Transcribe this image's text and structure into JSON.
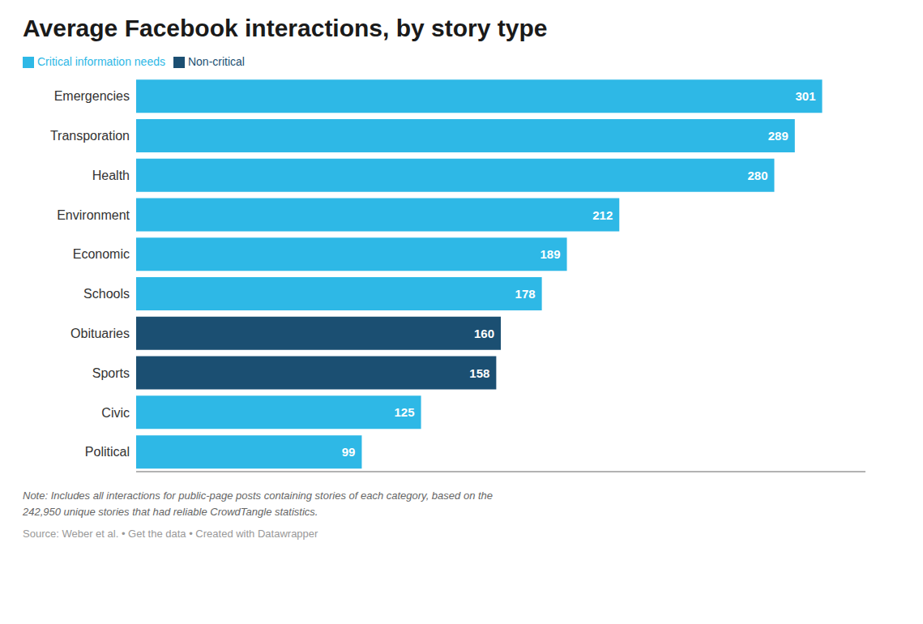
{
  "chart_data": {
    "type": "bar",
    "title": "Average Facebook interactions, by story type",
    "orientation": "horizontal",
    "stacked": true,
    "categories": [
      "Emergencies",
      "Transporation",
      "Health",
      "Environment",
      "Economic",
      "Schools",
      "Obituaries",
      "Sports",
      "Civic",
      "Political"
    ],
    "series": [
      {
        "name": "Critical information needs",
        "color": "#2eb8e6",
        "values": [
          301,
          289,
          280,
          212,
          189,
          178,
          null,
          null,
          125,
          99
        ]
      },
      {
        "name": "Non-critical",
        "color": "#1b4f72",
        "values": [
          null,
          null,
          null,
          null,
          null,
          null,
          160,
          158,
          null,
          null
        ]
      }
    ],
    "xlim": [
      0,
      320
    ],
    "data_labels": true,
    "tick_labels": "y",
    "grid": false,
    "legend": "top left",
    "annotations": [
      "Note: Includes all interactions for public-page posts containing stories of each category, based on the\n242,950 unique stories that had reliable CrowdTangle statistics.",
      "Source: Weber et al. • Get the data • Created with Datawrapper"
    ]
  }
}
